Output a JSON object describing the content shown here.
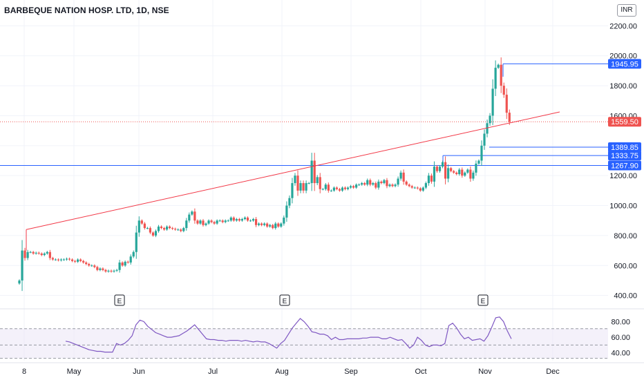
{
  "chart_data": [
    {
      "type": "candlestick",
      "title": "BARBEQUE NATION HOSP. LTD, 1D, NSE",
      "currency": "INR",
      "ylim": [
        320,
        2280
      ],
      "y_ticks": [
        400,
        600,
        800,
        1000,
        1200,
        1400,
        1600,
        1800,
        2000,
        2200
      ],
      "y_tick_labels": [
        "400.00",
        "600.00",
        "800.00",
        "1000.00",
        "1200.00",
        "1400.00",
        "1600.00",
        "1800.00",
        "2000.00",
        "2200.00"
      ],
      "x_tick_labels": [
        "8",
        "May",
        "Jun",
        "Jul",
        "Aug",
        "Sep",
        "Oct",
        "Nov",
        "Dec"
      ],
      "up_color": "#26a69a",
      "down_color": "#ef5350",
      "closes": [
        500,
        700,
        650,
        690,
        690,
        680,
        685,
        680,
        670,
        680,
        690,
        650,
        640,
        640,
        635,
        640,
        640,
        645,
        640,
        630,
        625,
        640,
        630,
        620,
        610,
        600,
        600,
        590,
        570,
        580,
        570,
        560,
        565,
        560,
        565,
        570,
        620,
        600,
        625,
        620,
        660,
        690,
        820,
        900,
        880,
        850,
        850,
        820,
        800,
        830,
        860,
        850,
        840,
        860,
        850,
        845,
        840,
        840,
        830,
        850,
        900,
        940,
        960,
        900,
        880,
        900,
        870,
        880,
        900,
        890,
        880,
        900,
        900,
        890,
        900,
        900,
        920,
        900,
        910,
        900,
        910,
        920,
        900,
        900,
        910,
        870,
        880,
        870,
        880,
        860,
        870,
        850,
        880,
        860,
        880,
        920,
        1000,
        1050,
        1150,
        1200,
        1100,
        1150,
        1100,
        1150,
        1150,
        1300,
        1150,
        1190,
        1110,
        1110,
        1140,
        1100,
        1100,
        1120,
        1110,
        1100,
        1120,
        1110,
        1120,
        1130,
        1120,
        1140,
        1140,
        1150,
        1140,
        1170,
        1140,
        1150,
        1120,
        1160,
        1150,
        1170,
        1130,
        1140,
        1130,
        1140,
        1180,
        1220,
        1160,
        1140,
        1130,
        1120,
        1120,
        1115,
        1100,
        1120,
        1150,
        1200,
        1160,
        1260,
        1230,
        1260,
        1290,
        1180,
        1250,
        1230,
        1220,
        1210,
        1240,
        1200,
        1220,
        1240,
        1180,
        1220,
        1280,
        1300,
        1400,
        1480,
        1550,
        1600,
        1780,
        1920,
        1940,
        1800,
        1740,
        1620,
        1559.5
      ],
      "horizontal_levels": [
        1945.95,
        1389.85,
        1333.75,
        1267.9
      ],
      "horizontal_level_labels": [
        "1945.95",
        "1389.85",
        "1333.75",
        "1267.90"
      ],
      "last_price": 1559.5,
      "last_price_label": "1559.50",
      "trendline": [
        {
          "x": "Apr 8",
          "y": 840
        },
        {
          "x": "Nov 28",
          "y": 1625
        }
      ],
      "earnings_markers": [
        "E",
        "E",
        "E"
      ]
    },
    {
      "type": "line",
      "panel": "RSI",
      "ylim": [
        30,
        92
      ],
      "y_ticks": [
        40,
        60,
        80
      ],
      "y_tick_labels": [
        "40.00",
        "60.00",
        "80.00"
      ],
      "band": [
        33,
        71
      ],
      "midline": 50,
      "line_color": "#7e57c2",
      "values": [
        55,
        54,
        52,
        50,
        48,
        46,
        44,
        43,
        42,
        42,
        41,
        41,
        41,
        52,
        50,
        52,
        56,
        62,
        76,
        82,
        80,
        74,
        70,
        66,
        64,
        62,
        60,
        60,
        61,
        62,
        65,
        68,
        72,
        76,
        70,
        64,
        58,
        57,
        57,
        56,
        56,
        55,
        56,
        56,
        56,
        55,
        56,
        55,
        54,
        55,
        54,
        54,
        52,
        49,
        46,
        52,
        56,
        64,
        72,
        78,
        84,
        80,
        74,
        67,
        66,
        64,
        64,
        62,
        57,
        60,
        57,
        57,
        58,
        58,
        58,
        58,
        59,
        59,
        60,
        60,
        60,
        58,
        58,
        60,
        58,
        56,
        57,
        52,
        46,
        50,
        60,
        56,
        50,
        48,
        50,
        50,
        49,
        52,
        75,
        78,
        72,
        64,
        58,
        60,
        56,
        57,
        58,
        55,
        62,
        73,
        85,
        86,
        80,
        68,
        58
      ]
    }
  ]
}
